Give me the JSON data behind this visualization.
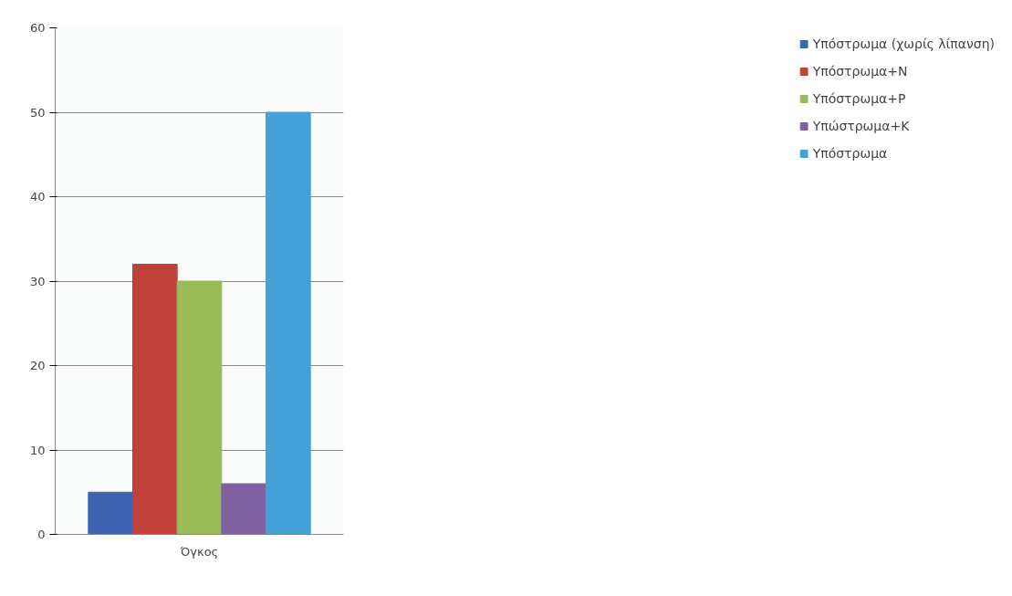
{
  "chart_data": {
    "type": "bar",
    "categories": [
      "Όγκος"
    ],
    "series": [
      {
        "name": "Υπόστρωμα (χωρίς λίπανση)",
        "color": "#3f62b1",
        "values": [
          5
        ]
      },
      {
        "name": "Υπόστρωμα+N",
        "color": "#c0403c",
        "values": [
          32
        ]
      },
      {
        "name": "Υπόστρωμα+P",
        "color": "#9aba58",
        "values": [
          30
        ]
      },
      {
        "name": "Υπώστρωμα+K",
        "color": "#7d61a1",
        "values": [
          6
        ]
      },
      {
        "name": "Υπόστρωμα",
        "color": "#45a2d8",
        "values": [
          50
        ]
      }
    ],
    "ylim": [
      0,
      60
    ],
    "yticks": [
      0,
      10,
      20,
      30,
      40,
      50,
      60
    ],
    "grid": "y",
    "legend": "right"
  }
}
